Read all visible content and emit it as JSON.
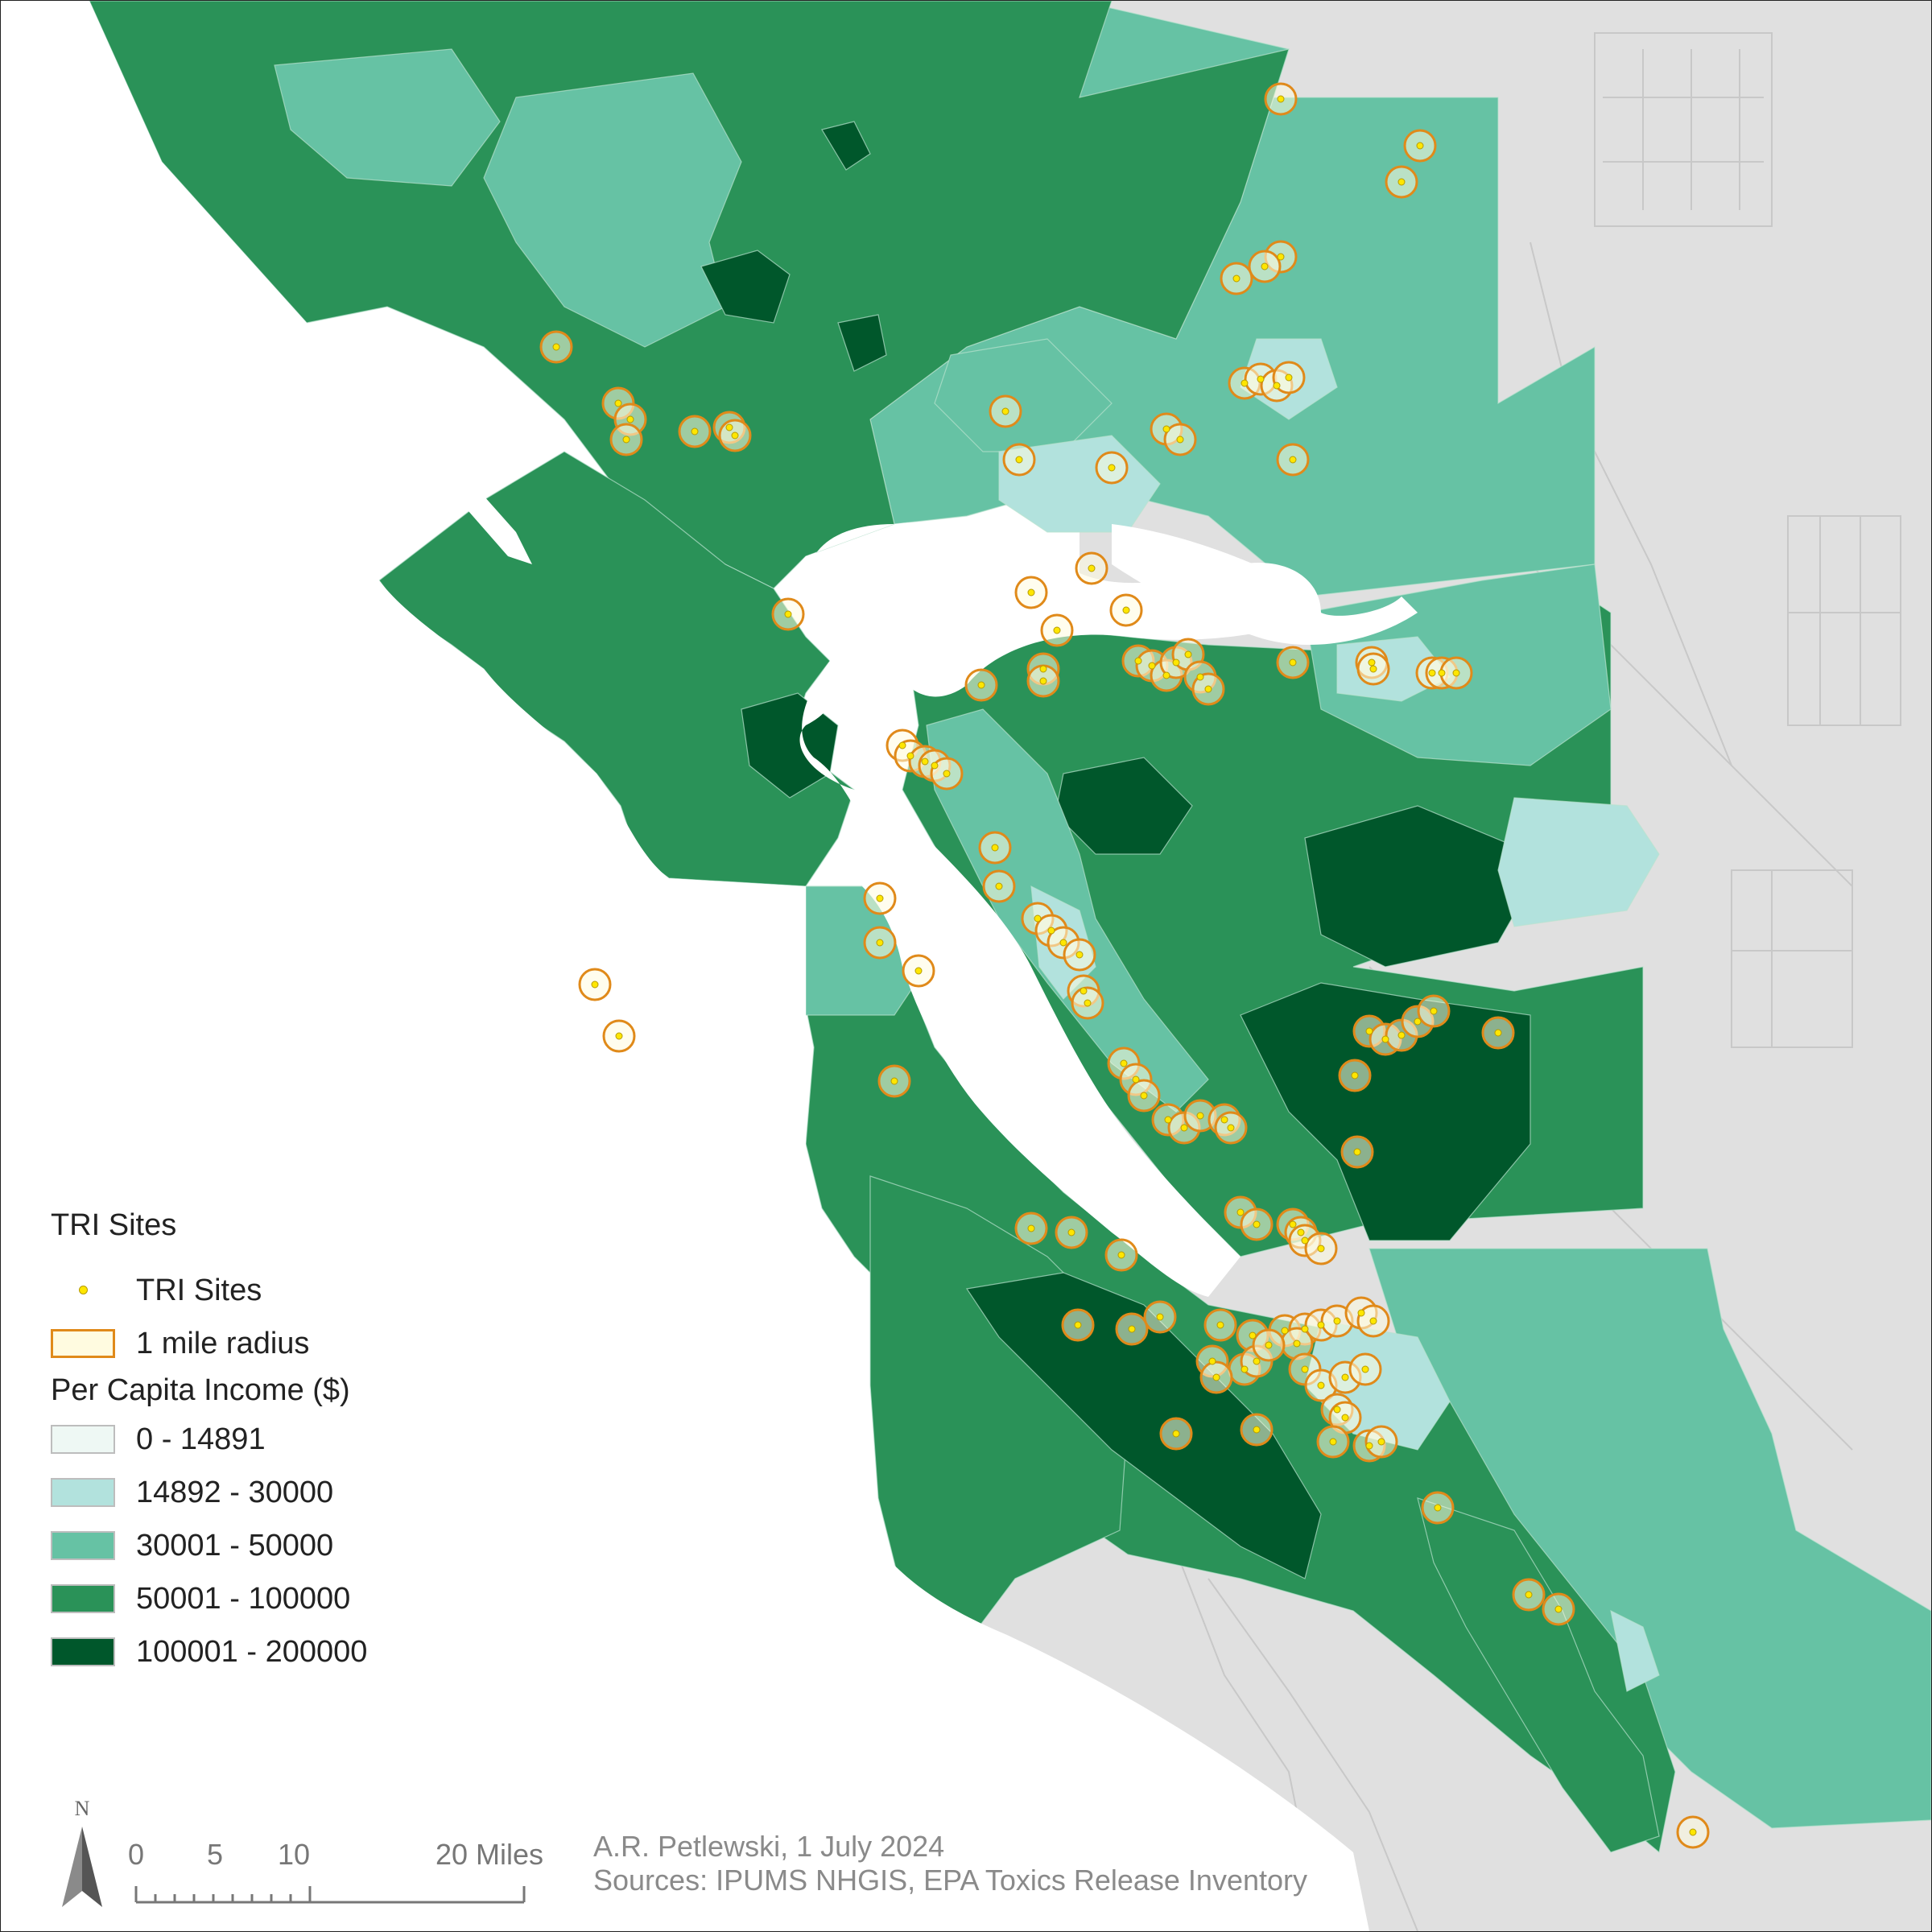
{
  "legend": {
    "tri_group_title": "TRI Sites",
    "tri_sites_label": "TRI Sites",
    "radius_label": "1 mile radius",
    "income_title": "Per Capita Income ($)",
    "classes": [
      {
        "label": "0 - 14891",
        "color": "#eef8f4"
      },
      {
        "label": "14892 - 30000",
        "color": "#b2e2dd"
      },
      {
        "label": "30001 - 50000",
        "color": "#66c2a4"
      },
      {
        "label": "50001 - 100000",
        "color": "#2a9258"
      },
      {
        "label": "100001 - 200000",
        "color": "#00572b"
      }
    ]
  },
  "colors": {
    "background_land": "#e0e0e0",
    "water": "#ffffff",
    "tri_dot": "#ffe600",
    "radius_ring": "#e08a1a",
    "radius_fill": "#fffbe0"
  },
  "scale_bar": {
    "labels": [
      "0",
      "5",
      "10",
      "20 Miles"
    ]
  },
  "north_arrow": {
    "label": "N"
  },
  "credits": {
    "author_line": "A.R. Petlewski, 1 July 2024",
    "sources_line": "Sources: IPUMS NHGIS, EPA Toxics Release Inventory"
  }
}
